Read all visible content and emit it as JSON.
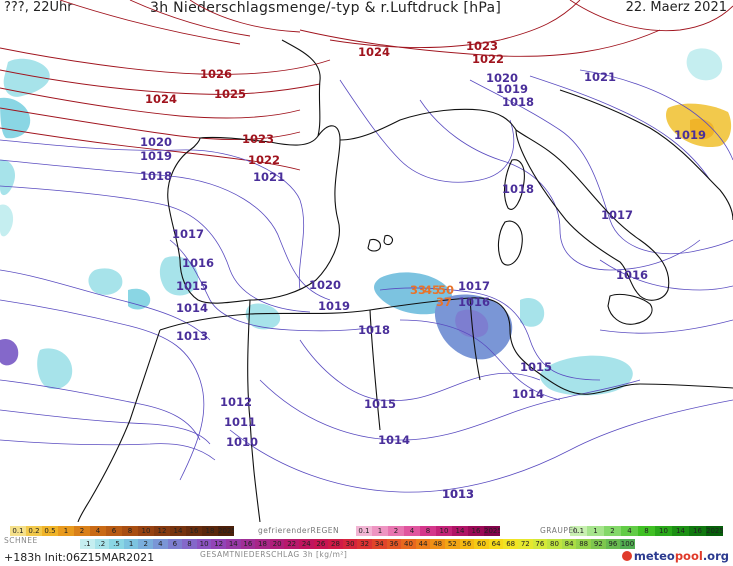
{
  "header": {
    "left": "???, 22Uhr",
    "title": "3h Niederschlagsmenge/-typ & r.Luftdruck [hPa]",
    "date": "22. Maerz 2021"
  },
  "map": {
    "isobar_labels_red": [
      "1026",
      "1025",
      "1024",
      "1024",
      "1023",
      "1022",
      "1023",
      "1022",
      "1021"
    ],
    "isobar_labels_blue": [
      "1020",
      "1019",
      "1018",
      "1021",
      "1020",
      "1019",
      "1018",
      "1019",
      "1018",
      "1017",
      "1016",
      "1016",
      "1015",
      "1014",
      "1013",
      "1017",
      "1020",
      "1019",
      "1018",
      "1017",
      "1016",
      "1015",
      "1014",
      "1014",
      "1013",
      "1012",
      "1011",
      "1010",
      "1015",
      "1013"
    ],
    "orange_labels": [
      "33",
      "45",
      "50",
      "37"
    ]
  },
  "legend": {
    "snow_label": "SCHNEE",
    "snow_values": [
      "0.1",
      "0.2",
      "0.5",
      "1",
      "2",
      "4",
      "6",
      "8",
      "10",
      "12",
      "14",
      "16",
      "18",
      "2025+"
    ],
    "freezing_label": "gefrierenderREGEN",
    "freezing_values": [
      "0.1",
      "1",
      "2",
      "4",
      "8",
      "10",
      "14",
      "16",
      "2025+"
    ],
    "graupel_label": "GRAUPEL",
    "graupel_values": [
      "0.1",
      "1",
      "2",
      "4",
      "8",
      "10",
      "14",
      "16",
      "2025+"
    ],
    "total_label": "GESAMTNIEDERSCHLAG 3h [kg/m²]",
    "total_values": [
      ".1",
      ".2",
      ".5",
      "1",
      "2",
      "4",
      "6",
      "8",
      "10",
      "12",
      "14",
      "16",
      "18",
      "20",
      "22",
      "24",
      "26",
      "28",
      "30",
      "32",
      "34",
      "36",
      "40",
      "44",
      "48",
      "52",
      "56",
      "60",
      "64",
      "68",
      "72",
      "76",
      "80",
      "84",
      "88",
      "92",
      "96",
      "100"
    ],
    "colors": {
      "snow": [
        "#f5e08a",
        "#f2c94c",
        "#f0b429",
        "#e89a1e",
        "#d98019",
        "#c96a16",
        "#b85b14",
        "#a84e12",
        "#964212",
        "#863a10",
        "#76330f",
        "#672c0e",
        "#5a260c",
        "#4c200a"
      ],
      "freezing": [
        "#f2b5d4",
        "#ee95c2",
        "#e875b0",
        "#e0559e",
        "#d4378b",
        "#c42378",
        "#b01466",
        "#9a0a56",
        "#82044a"
      ],
      "graupel": [
        "#c8f0b0",
        "#a6e48c",
        "#84d869",
        "#62cc46",
        "#40c024",
        "#2aa81a",
        "#1c9014",
        "#10780f",
        "#06600a"
      ],
      "total": [
        "#c5eef0",
        "#a7e3ea",
        "#8ad6e4",
        "#7cc3e0",
        "#7aaedc",
        "#7a96d6",
        "#7d7ed0",
        "#8468ca",
        "#8c54c2",
        "#9244b6",
        "#9838a6",
        "#a02e96",
        "#a82688",
        "#b01e7a",
        "#b8186c",
        "#c0145e",
        "#c81452",
        "#d01a46",
        "#d6243c",
        "#dc3232",
        "#e0442a",
        "#e45624",
        "#e8681e",
        "#ec7c1a",
        "#ef9016",
        "#f2a414",
        "#f4b812",
        "#f6ca14",
        "#f6da1a",
        "#f2e424",
        "#e6e82e",
        "#d4e838",
        "#c0e440",
        "#aadc46",
        "#94d24a",
        "#7ec64e",
        "#68ba50",
        "#52ae52"
      ]
    }
  },
  "footer": {
    "run": "+183h Init:06Z15MAR2021",
    "logo_left": "meteo",
    "logo_right": "pool",
    "logo_tld": ".org"
  }
}
